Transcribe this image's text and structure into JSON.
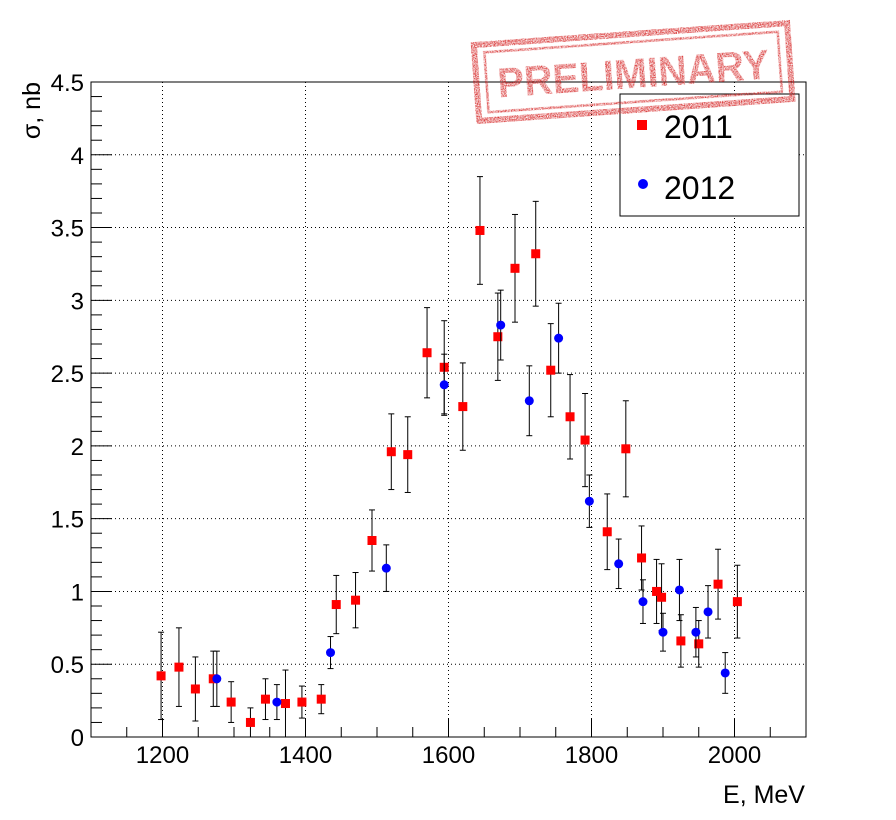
{
  "chart_data": {
    "type": "scatter",
    "title": "",
    "xlabel": "E, MeV",
    "ylabel": "σ, nb",
    "xlim": [
      1100,
      2100
    ],
    "ylim": [
      0,
      4.5
    ],
    "x_ticks": [
      1200,
      1400,
      1600,
      1800,
      2000
    ],
    "y_ticks": [
      0,
      0.5,
      1,
      1.5,
      2,
      2.5,
      3,
      3.5,
      4,
      4.5
    ],
    "x_tick_labels": [
      "1200",
      "1400",
      "1600",
      "1800",
      "2000"
    ],
    "y_tick_labels": [
      "0",
      "0.5",
      "1",
      "1.5",
      "2",
      "2.5",
      "3",
      "3.5",
      "4",
      "4.5"
    ],
    "grid": true,
    "legend_position": "top-right",
    "stamp_text": "PRELIMINARY",
    "stamp_color": "#d42020",
    "series": [
      {
        "name": "2011",
        "marker": "square",
        "color": "#ff0000",
        "points": [
          {
            "x": 1198,
            "y": 0.42,
            "err": 0.3
          },
          {
            "x": 1223,
            "y": 0.48,
            "err": 0.27
          },
          {
            "x": 1246,
            "y": 0.33,
            "err": 0.22
          },
          {
            "x": 1271,
            "y": 0.4,
            "err": 0.19
          },
          {
            "x": 1296,
            "y": 0.24,
            "err": 0.14
          },
          {
            "x": 1323,
            "y": 0.1,
            "err": 0.1
          },
          {
            "x": 1344,
            "y": 0.26,
            "err": 0.14
          },
          {
            "x": 1372,
            "y": 0.23,
            "err": 0.23
          },
          {
            "x": 1395,
            "y": 0.24,
            "err": 0.11
          },
          {
            "x": 1422,
            "y": 0.26,
            "err": 0.1
          },
          {
            "x": 1443,
            "y": 0.91,
            "err": 0.2
          },
          {
            "x": 1470,
            "y": 0.94,
            "err": 0.19
          },
          {
            "x": 1493,
            "y": 1.35,
            "err": 0.21
          },
          {
            "x": 1520,
            "y": 1.96,
            "err": 0.26
          },
          {
            "x": 1543,
            "y": 1.94,
            "err": 0.26
          },
          {
            "x": 1570,
            "y": 2.64,
            "err": 0.31
          },
          {
            "x": 1594,
            "y": 2.54,
            "err": 0.32
          },
          {
            "x": 1620,
            "y": 2.27,
            "err": 0.3
          },
          {
            "x": 1644,
            "y": 3.48,
            "err": 0.37
          },
          {
            "x": 1669,
            "y": 2.75,
            "err": 0.3
          },
          {
            "x": 1693,
            "y": 3.22,
            "err": 0.37
          },
          {
            "x": 1722,
            "y": 3.32,
            "err": 0.36
          },
          {
            "x": 1743,
            "y": 2.52,
            "err": 0.32
          },
          {
            "x": 1770,
            "y": 2.2,
            "err": 0.29
          },
          {
            "x": 1791,
            "y": 2.04,
            "err": 0.32
          },
          {
            "x": 1822,
            "y": 1.41,
            "err": 0.26
          },
          {
            "x": 1848,
            "y": 1.98,
            "err": 0.33
          },
          {
            "x": 1870,
            "y": 1.23,
            "err": 0.22
          },
          {
            "x": 1891,
            "y": 1.0,
            "err": 0.22
          },
          {
            "x": 1898,
            "y": 0.96,
            "err": 0.23
          },
          {
            "x": 1925,
            "y": 0.66,
            "err": 0.18
          },
          {
            "x": 1950,
            "y": 0.64,
            "err": 0.16
          },
          {
            "x": 1977,
            "y": 1.05,
            "err": 0.24
          },
          {
            "x": 2004,
            "y": 0.93,
            "err": 0.25
          }
        ]
      },
      {
        "name": "2012",
        "marker": "circle",
        "color": "#0000ff",
        "points": [
          {
            "x": 1276,
            "y": 0.4,
            "err": 0.19
          },
          {
            "x": 1360,
            "y": 0.24,
            "err": 0.12
          },
          {
            "x": 1435,
            "y": 0.58,
            "err": 0.11
          },
          {
            "x": 1513,
            "y": 1.16,
            "err": 0.16
          },
          {
            "x": 1594,
            "y": 2.42,
            "err": 0.21
          },
          {
            "x": 1673,
            "y": 2.83,
            "err": 0.24
          },
          {
            "x": 1713,
            "y": 2.31,
            "err": 0.24
          },
          {
            "x": 1754,
            "y": 2.74,
            "err": 0.24
          },
          {
            "x": 1797,
            "y": 1.62,
            "err": 0.18
          },
          {
            "x": 1838,
            "y": 1.19,
            "err": 0.17
          },
          {
            "x": 1872,
            "y": 0.93,
            "err": 0.15
          },
          {
            "x": 1900,
            "y": 0.72,
            "err": 0.13
          },
          {
            "x": 1923,
            "y": 1.01,
            "err": 0.21
          },
          {
            "x": 1946,
            "y": 0.72,
            "err": 0.17
          },
          {
            "x": 1963,
            "y": 0.86,
            "err": 0.18
          },
          {
            "x": 1987,
            "y": 0.44,
            "err": 0.14
          }
        ]
      }
    ]
  }
}
